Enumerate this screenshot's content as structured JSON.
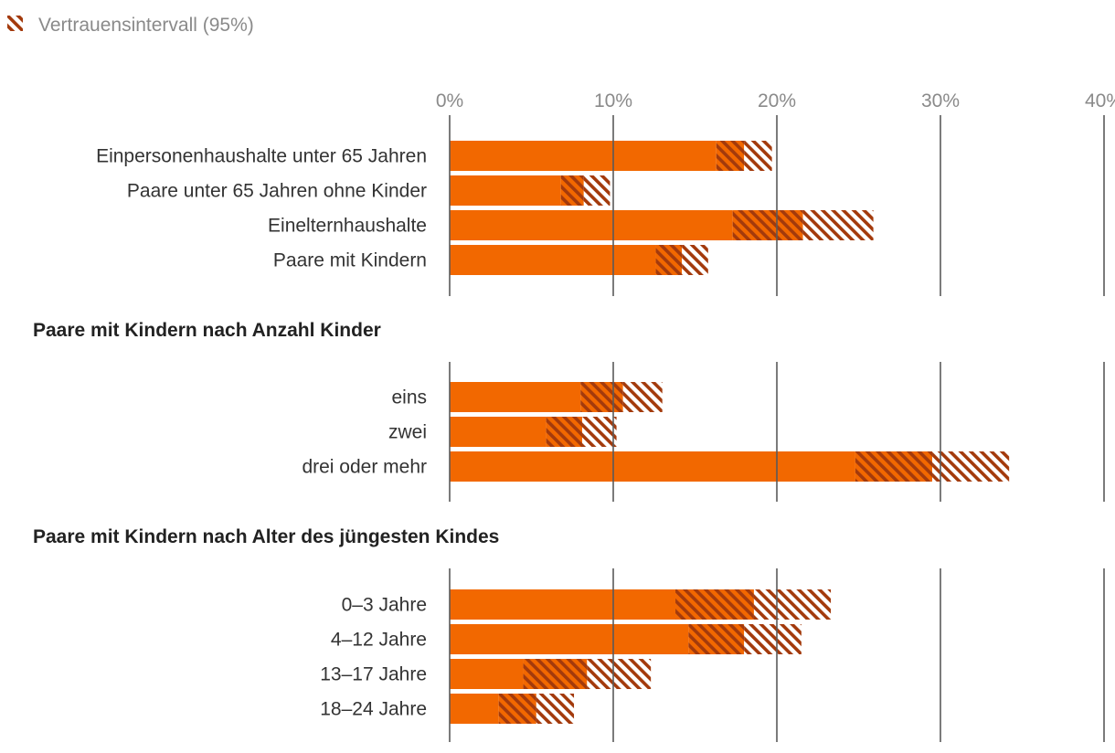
{
  "legend": {
    "label": "Vertrauensintervall (95%)"
  },
  "colors": {
    "bar": "#f26800",
    "interval": "#a33a0c",
    "grid": "#5a5a5a"
  },
  "chart_data": {
    "type": "bar",
    "orientation": "horizontal",
    "xlim": [
      0,
      40
    ],
    "xticks": [
      0,
      10,
      20,
      30,
      40
    ],
    "xtick_labels": [
      "0%",
      "10%",
      "20%",
      "30%",
      "40%"
    ],
    "grid": true,
    "groups": [
      {
        "title": "",
        "categories": [
          "Einpersonenhaushalte unter 65 Jahren",
          "Paare unter 65 Jahren ohne Kinder",
          "Einelternhaushalte",
          "Paare mit Kindern"
        ],
        "values": [
          18.0,
          8.2,
          21.6,
          14.2
        ],
        "ci_low": [
          16.3,
          6.8,
          17.3,
          12.6
        ],
        "ci_high": [
          19.7,
          9.8,
          25.9,
          15.8
        ]
      },
      {
        "title": "Paare mit Kindern nach Anzahl Kinder",
        "categories": [
          "eins",
          "zwei",
          "drei oder mehr"
        ],
        "values": [
          10.6,
          8.1,
          29.5
        ],
        "ci_low": [
          8.0,
          5.9,
          24.8
        ],
        "ci_high": [
          13.0,
          10.2,
          34.2
        ]
      },
      {
        "title": "Paare mit Kindern nach Alter des jüngesten Kindes",
        "categories": [
          "0–3 Jahre",
          "4–12 Jahre",
          "13–17 Jahre",
          "18–24 Jahre"
        ],
        "values": [
          18.6,
          18.0,
          8.4,
          5.3
        ],
        "ci_low": [
          13.8,
          14.6,
          4.5,
          3.0
        ],
        "ci_high": [
          23.3,
          21.5,
          12.3,
          7.6
        ]
      }
    ]
  }
}
